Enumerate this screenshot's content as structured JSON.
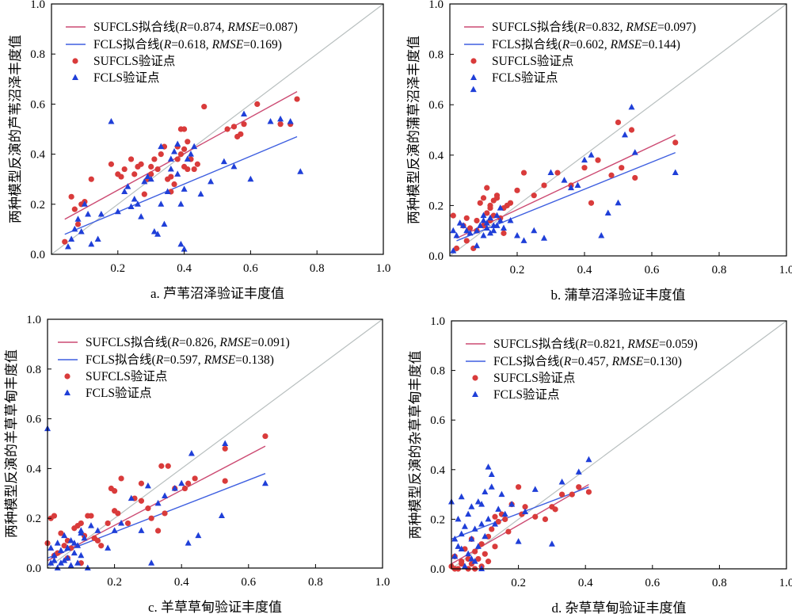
{
  "colors": {
    "sufcls": "#d93b3b",
    "fcls": "#1f3fd8",
    "sufcls_line": "#cc4a72",
    "fcls_line": "#3e5fe0",
    "ref_line": "#b8bfbf"
  },
  "chart_data": [
    {
      "type": "scatter",
      "xlabel": "a. 芦苇沼泽验证丰度值",
      "ylabel": "两种模型反演的芦苇沼泽丰度值",
      "xlim": [
        0,
        1.0
      ],
      "ylim": [
        0,
        1.0
      ],
      "xticks": [
        "0.2",
        "0.4",
        "0.6",
        "0.8",
        "1.0"
      ],
      "yticks": [
        "0.0",
        "0.2",
        "0.4",
        "0.6",
        "0.8",
        "1.0"
      ],
      "legend": [
        {
          "label": "SUFCLS拟合线(",
          "r_label": "R",
          "r_value": "=0.874, ",
          "rmse_label": "RMSE",
          "rmse_value": "=0.087)"
        },
        {
          "label": "FCLS拟合线(",
          "r_label": "R",
          "r_value": "=0.618, ",
          "rmse_label": "RMSE",
          "rmse_value": "=0.169)"
        },
        {
          "label": "SUFCLS验证点"
        },
        {
          "label": "FCLS验证点"
        }
      ],
      "series": [
        {
          "name": "SUFCLS拟合线",
          "kind": "line",
          "x": [
            0.04,
            0.74
          ],
          "y": [
            0.14,
            0.65
          ]
        },
        {
          "name": "FCLS拟合线",
          "kind": "line",
          "x": [
            0.04,
            0.74
          ],
          "y": [
            0.08,
            0.47
          ]
        },
        {
          "name": "SUFCLS验证点",
          "kind": "points",
          "x": [
            0.04,
            0.06,
            0.07,
            0.08,
            0.09,
            0.1,
            0.12,
            0.18,
            0.2,
            0.21,
            0.22,
            0.24,
            0.26,
            0.27,
            0.28,
            0.29,
            0.3,
            0.31,
            0.32,
            0.33,
            0.34,
            0.35,
            0.36,
            0.37,
            0.38,
            0.38,
            0.39,
            0.39,
            0.4,
            0.4,
            0.4,
            0.41,
            0.41,
            0.42,
            0.43,
            0.46,
            0.53,
            0.55,
            0.56,
            0.57,
            0.58,
            0.62,
            0.69,
            0.72,
            0.74,
            0.44,
            0.36,
            0.3,
            0.25
          ],
          "y": [
            0.05,
            0.23,
            0.18,
            0.12,
            0.2,
            0.21,
            0.3,
            0.36,
            0.32,
            0.31,
            0.34,
            0.38,
            0.35,
            0.36,
            0.24,
            0.3,
            0.32,
            0.38,
            0.34,
            0.4,
            0.43,
            0.3,
            0.25,
            0.28,
            0.38,
            0.43,
            0.4,
            0.5,
            0.35,
            0.42,
            0.5,
            0.45,
            0.34,
            0.38,
            0.34,
            0.59,
            0.5,
            0.51,
            0.47,
            0.48,
            0.52,
            0.6,
            0.52,
            0.52,
            0.62,
            0.36,
            0.31,
            0.35,
            0.32
          ]
        },
        {
          "name": "FCLS验证点",
          "kind": "points",
          "x": [
            0.05,
            0.06,
            0.07,
            0.08,
            0.09,
            0.1,
            0.11,
            0.12,
            0.14,
            0.15,
            0.18,
            0.2,
            0.22,
            0.23,
            0.24,
            0.25,
            0.26,
            0.27,
            0.28,
            0.29,
            0.3,
            0.31,
            0.32,
            0.33,
            0.33,
            0.34,
            0.35,
            0.36,
            0.37,
            0.38,
            0.38,
            0.39,
            0.39,
            0.4,
            0.41,
            0.42,
            0.43,
            0.45,
            0.48,
            0.52,
            0.55,
            0.58,
            0.6,
            0.66,
            0.69,
            0.72,
            0.75,
            0.4,
            0.36
          ],
          "y": [
            0.03,
            0.06,
            0.1,
            0.14,
            0.09,
            0.2,
            0.16,
            0.04,
            0.06,
            0.16,
            0.53,
            0.17,
            0.25,
            0.27,
            0.19,
            0.22,
            0.2,
            0.15,
            0.29,
            0.31,
            0.3,
            0.09,
            0.08,
            0.43,
            0.2,
            0.12,
            0.25,
            0.38,
            0.41,
            0.44,
            0.32,
            0.04,
            0.2,
            0.26,
            0.38,
            0.4,
            0.43,
            0.24,
            0.29,
            0.37,
            0.35,
            0.56,
            0.3,
            0.53,
            0.54,
            0.53,
            0.33,
            0.02,
            0.34
          ]
        }
      ]
    },
    {
      "type": "scatter",
      "xlabel": "b. 蒲草沼泽验证丰度值",
      "ylabel": "两种模型反演的蒲草沼泽丰度值",
      "xlim": [
        0,
        1.0
      ],
      "ylim": [
        0,
        1.0
      ],
      "xticks": [
        "0.2",
        "0.4",
        "0.6",
        "0.8",
        "1.0"
      ],
      "yticks": [
        "0.0",
        "0.2",
        "0.4",
        "0.6",
        "0.8",
        "1.0"
      ],
      "legend": [
        {
          "label": "SUFCLS拟合线(",
          "r_label": "R",
          "r_value": "=0.832, ",
          "rmse_label": "RMSE",
          "rmse_value": "=0.097)"
        },
        {
          "label": "FCLS拟合线(",
          "r_label": "R",
          "r_value": "=0.602, ",
          "rmse_label": "RMSE",
          "rmse_value": "=0.144)"
        },
        {
          "label": "SUFCLS验证点"
        },
        {
          "label": "FCLS验证点"
        }
      ],
      "series": [
        {
          "name": "SUFCLS拟合线",
          "kind": "line",
          "x": [
            0.02,
            0.67
          ],
          "y": [
            0.07,
            0.48
          ]
        },
        {
          "name": "FCLS拟合线",
          "kind": "line",
          "x": [
            0.02,
            0.67
          ],
          "y": [
            0.06,
            0.41
          ]
        },
        {
          "name": "SUFCLS验证点",
          "kind": "points",
          "x": [
            0.01,
            0.02,
            0.04,
            0.05,
            0.06,
            0.07,
            0.08,
            0.09,
            0.1,
            0.11,
            0.11,
            0.12,
            0.12,
            0.13,
            0.13,
            0.14,
            0.15,
            0.16,
            0.17,
            0.18,
            0.2,
            0.22,
            0.25,
            0.28,
            0.32,
            0.36,
            0.4,
            0.42,
            0.44,
            0.48,
            0.5,
            0.51,
            0.54,
            0.55,
            0.67,
            0.05,
            0.08,
            0.1,
            0.12,
            0.14,
            0.16
          ],
          "y": [
            0.16,
            0.03,
            0.12,
            0.15,
            0.11,
            0.03,
            0.1,
            0.21,
            0.23,
            0.27,
            0.17,
            0.14,
            0.2,
            0.16,
            0.22,
            0.24,
            0.15,
            0.19,
            0.2,
            0.21,
            0.26,
            0.33,
            0.24,
            0.28,
            0.33,
            0.28,
            0.35,
            0.21,
            0.38,
            0.32,
            0.53,
            0.35,
            0.5,
            0.31,
            0.45,
            0.06,
            0.14,
            0.12,
            0.19,
            0.23,
            0.09
          ]
        },
        {
          "name": "FCLS验证点",
          "kind": "points",
          "x": [
            0.01,
            0.01,
            0.02,
            0.03,
            0.04,
            0.05,
            0.06,
            0.07,
            0.08,
            0.08,
            0.09,
            0.1,
            0.1,
            0.11,
            0.11,
            0.12,
            0.12,
            0.13,
            0.13,
            0.14,
            0.14,
            0.15,
            0.16,
            0.18,
            0.2,
            0.22,
            0.25,
            0.28,
            0.3,
            0.34,
            0.36,
            0.38,
            0.4,
            0.42,
            0.45,
            0.47,
            0.5,
            0.52,
            0.54,
            0.55,
            0.67,
            0.1,
            0.15
          ],
          "y": [
            0.02,
            0.1,
            0.08,
            0.13,
            0.12,
            0.1,
            0.09,
            0.66,
            0.04,
            0.1,
            0.12,
            0.14,
            0.08,
            0.11,
            0.13,
            0.15,
            0.09,
            0.12,
            0.1,
            0.16,
            0.12,
            0.19,
            0.11,
            0.14,
            0.08,
            0.06,
            0.1,
            0.07,
            0.33,
            0.3,
            0.27,
            0.28,
            0.38,
            0.4,
            0.08,
            0.17,
            0.21,
            0.48,
            0.59,
            0.41,
            0.33,
            0.16,
            0.14
          ]
        }
      ]
    },
    {
      "type": "scatter",
      "xlabel": "c. 羊草草甸验证丰度值",
      "ylabel": "两种模型反演的羊草草甸丰度值",
      "xlim": [
        0,
        1.0
      ],
      "ylim": [
        0,
        1.0
      ],
      "xticks": [
        "0.2",
        "0.4",
        "0.6",
        "0.8",
        "1.0"
      ],
      "yticks": [
        "0.0",
        "0.2",
        "0.4",
        "0.6",
        "0.8",
        "1.0"
      ],
      "legend": [
        {
          "label": "SUFCLS拟合线(",
          "r_label": "R",
          "r_value": "=0.826, ",
          "rmse_label": "RMSE",
          "rmse_value": "=0.091)"
        },
        {
          "label": "FCLS拟合线(",
          "r_label": "R",
          "r_value": "=0.597, ",
          "rmse_label": "RMSE",
          "rmse_value": "=0.138)"
        },
        {
          "label": "SUFCLS验证点"
        },
        {
          "label": "FCLS验证点"
        }
      ],
      "series": [
        {
          "name": "SUFCLS拟合线",
          "kind": "line",
          "x": [
            0.0,
            0.65
          ],
          "y": [
            0.03,
            0.49
          ]
        },
        {
          "name": "FCLS拟合线",
          "kind": "line",
          "x": [
            0.0,
            0.65
          ],
          "y": [
            0.04,
            0.38
          ]
        },
        {
          "name": "SUFCLS验证点",
          "kind": "points",
          "x": [
            0.0,
            0.01,
            0.02,
            0.03,
            0.04,
            0.05,
            0.06,
            0.07,
            0.08,
            0.09,
            0.1,
            0.11,
            0.12,
            0.13,
            0.14,
            0.15,
            0.16,
            0.18,
            0.19,
            0.2,
            0.21,
            0.22,
            0.24,
            0.26,
            0.28,
            0.3,
            0.31,
            0.33,
            0.34,
            0.36,
            0.38,
            0.41,
            0.42,
            0.44,
            0.53,
            0.53,
            0.65,
            0.02,
            0.06,
            0.1,
            0.14,
            0.2,
            0.28,
            0.35
          ],
          "y": [
            0.1,
            0.2,
            0.21,
            0.06,
            0.14,
            0.09,
            0.11,
            0.08,
            0.16,
            0.17,
            0.18,
            0.13,
            0.21,
            0.21,
            0.12,
            0.11,
            0.09,
            0.18,
            0.32,
            0.31,
            0.22,
            0.36,
            0.18,
            0.28,
            0.34,
            0.24,
            0.2,
            0.15,
            0.41,
            0.41,
            0.32,
            0.32,
            0.34,
            0.36,
            0.35,
            0.48,
            0.53,
            0.05,
            0.04,
            0.02,
            0.12,
            0.23,
            0.27,
            0.22
          ]
        },
        {
          "name": "FCLS验证点",
          "kind": "points",
          "x": [
            0.0,
            0.01,
            0.01,
            0.02,
            0.03,
            0.03,
            0.04,
            0.04,
            0.05,
            0.05,
            0.06,
            0.06,
            0.07,
            0.07,
            0.08,
            0.08,
            0.09,
            0.09,
            0.1,
            0.1,
            0.11,
            0.12,
            0.13,
            0.15,
            0.18,
            0.2,
            0.22,
            0.25,
            0.28,
            0.3,
            0.31,
            0.33,
            0.35,
            0.38,
            0.4,
            0.42,
            0.43,
            0.45,
            0.52,
            0.53,
            0.65,
            0.02,
            0.06,
            0.1
          ],
          "y": [
            0.56,
            0.02,
            0.08,
            0.05,
            0.0,
            0.1,
            0.02,
            0.07,
            0.03,
            0.13,
            0.04,
            0.08,
            0.01,
            0.11,
            0.06,
            0.1,
            0.02,
            0.09,
            0.05,
            0.15,
            0.12,
            0.0,
            0.17,
            0.15,
            0.08,
            0.15,
            0.18,
            0.28,
            0.15,
            0.33,
            0.02,
            0.26,
            0.29,
            0.32,
            0.34,
            0.1,
            0.46,
            0.13,
            0.21,
            0.5,
            0.34,
            0.03,
            0.08,
            0.14
          ]
        }
      ]
    },
    {
      "type": "scatter",
      "xlabel": "d. 杂草草甸验证丰度值",
      "ylabel": "两种模型反演的杂草草甸丰度值",
      "xlim": [
        0,
        1.0
      ],
      "ylim": [
        0,
        1.0
      ],
      "xticks": [
        "0.2",
        "0.4",
        "0.6",
        "0.8",
        "1.0"
      ],
      "yticks": [
        "0.0",
        "0.2",
        "0.4",
        "0.6",
        "0.8",
        "1.0"
      ],
      "legend": [
        {
          "label": "SUFCLS拟合线(",
          "r_label": "R",
          "r_value": "=0.821, ",
          "rmse_label": "RMSE",
          "rmse_value": "=0.059)"
        },
        {
          "label": "FCLS拟合线(",
          "r_label": "R",
          "r_value": "=0.457, ",
          "rmse_label": "RMSE",
          "rmse_value": "=0.130)"
        },
        {
          "label": "SUFCLS验证点"
        },
        {
          "label": "FCLS验证点"
        }
      ],
      "series": [
        {
          "name": "SUFCLS拟合线",
          "kind": "line",
          "x": [
            0.0,
            0.41
          ],
          "y": [
            0.02,
            0.34
          ]
        },
        {
          "name": "FCLS拟合线",
          "kind": "line",
          "x": [
            0.0,
            0.41
          ],
          "y": [
            0.12,
            0.33
          ]
        },
        {
          "name": "SUFCLS验证点",
          "kind": "points",
          "x": [
            0.0,
            0.01,
            0.02,
            0.03,
            0.04,
            0.05,
            0.06,
            0.07,
            0.08,
            0.09,
            0.1,
            0.11,
            0.12,
            0.13,
            0.14,
            0.15,
            0.16,
            0.17,
            0.18,
            0.2,
            0.21,
            0.22,
            0.25,
            0.28,
            0.3,
            0.31,
            0.33,
            0.36,
            0.38,
            0.41,
            0.01,
            0.03,
            0.05,
            0.07,
            0.09,
            0.11,
            0.13,
            0.06
          ],
          "y": [
            0.01,
            0.05,
            0.0,
            0.03,
            0.08,
            0.0,
            0.02,
            0.07,
            0.04,
            0.1,
            0.06,
            0.13,
            0.16,
            0.21,
            0.19,
            0.22,
            0.2,
            0.15,
            0.26,
            0.33,
            0.22,
            0.25,
            0.21,
            0.2,
            0.25,
            0.24,
            0.3,
            0.3,
            0.33,
            0.31,
            0.0,
            0.02,
            0.04,
            0.0,
            0.01,
            0.03,
            0.09,
            0.12
          ]
        },
        {
          "name": "FCLS验证点",
          "kind": "points",
          "x": [
            0.0,
            0.01,
            0.01,
            0.02,
            0.02,
            0.03,
            0.03,
            0.04,
            0.04,
            0.05,
            0.05,
            0.06,
            0.06,
            0.07,
            0.07,
            0.08,
            0.08,
            0.09,
            0.09,
            0.1,
            0.1,
            0.11,
            0.11,
            0.12,
            0.12,
            0.13,
            0.14,
            0.15,
            0.16,
            0.18,
            0.2,
            0.22,
            0.25,
            0.3,
            0.33,
            0.38,
            0.41,
            0.03,
            0.06,
            0.09
          ],
          "y": [
            0.27,
            0.12,
            0.05,
            0.2,
            0.09,
            0.29,
            0.14,
            0.01,
            0.17,
            0.22,
            0.06,
            0.12,
            0.25,
            0.16,
            0.03,
            0.27,
            0.09,
            0.18,
            0.26,
            0.13,
            0.31,
            0.41,
            0.2,
            0.33,
            0.38,
            0.18,
            0.24,
            0.3,
            0.22,
            0.26,
            0.11,
            0.23,
            0.32,
            0.1,
            0.35,
            0.39,
            0.44,
            0.08,
            0.04,
            0.0
          ]
        }
      ]
    }
  ]
}
